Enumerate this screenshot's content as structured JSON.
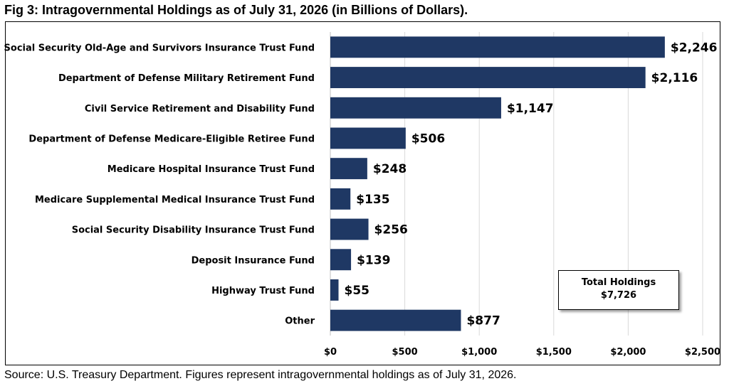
{
  "title": "Fig 3: Intragovernmental Holdings as of July 31, 2026 (in Billions of Dollars).",
  "source": "Source: U.S. Treasury Department. Figures represent intragovernmental holdings as of July 31, 2026.",
  "total_box": {
    "label": "Total Holdings",
    "value": "$7,726"
  },
  "colors": {
    "bar": "#1f3864",
    "grid": "#d9d9d9"
  },
  "chart_data": {
    "type": "bar",
    "orientation": "horizontal",
    "title": "Fig 3: Intragovernmental Holdings as of July 31, 2026 (in Billions of Dollars).",
    "xlabel": "",
    "ylabel": "",
    "xlim": [
      0,
      2500
    ],
    "grid": true,
    "categories": [
      "Social Security Old-Age and Survivors Insurance Trust Fund",
      "Department of Defense Military Retirement Fund",
      "Civil Service Retirement and Disability Fund",
      "Department of Defense Medicare-Eligible Retiree Fund",
      "Medicare Hospital Insurance Trust Fund",
      "Medicare Supplemental Medical Insurance Trust Fund",
      "Social Security Disability Insurance Trust Fund",
      "Deposit Insurance Fund",
      "Highway Trust Fund",
      "Other"
    ],
    "values": [
      2246,
      2116,
      1147,
      506,
      248,
      135,
      256,
      139,
      55,
      877
    ],
    "value_labels": [
      "$2,246",
      "$2,116",
      "$1,147",
      "$506",
      "$248",
      "$135",
      "$256",
      "$139",
      "$55",
      "$877"
    ],
    "ticks": [
      0,
      500,
      1000,
      1500,
      2000,
      2500
    ],
    "tick_labels": [
      "$0",
      "$500",
      "$1,000",
      "$1,500",
      "$2,000",
      "$2,500"
    ]
  }
}
